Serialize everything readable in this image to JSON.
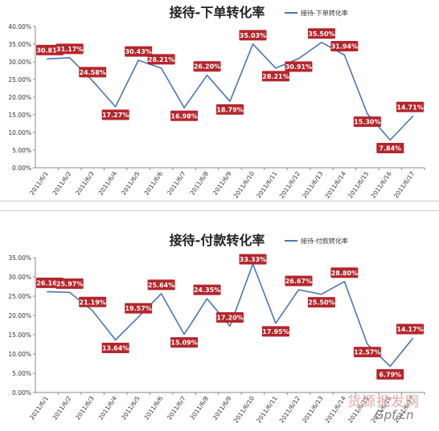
{
  "chart_data": [
    {
      "type": "line",
      "title": "接待-下单转化率",
      "series": [
        {
          "name": "接待-下单转化率",
          "values": [
            30.81,
            31.17,
            24.58,
            17.27,
            30.43,
            28.21,
            16.98,
            26.2,
            18.79,
            35.03,
            28.21,
            30.91,
            35.5,
            31.94,
            15.3,
            7.84,
            14.71
          ]
        }
      ],
      "categories": [
        "2011/6/1",
        "2011/6/2",
        "2011/6/3",
        "2011/6/4",
        "2011/6/5",
        "2011/6/6",
        "2011/6/7",
        "2011/6/8",
        "2011/6/9",
        "2011/6/10",
        "2011/6/11",
        "2011/6/12",
        "2011/6/13",
        "2011/6/14",
        "2011/6/15",
        "2011/6/16",
        "2011/6/17"
      ],
      "data_labels": [
        "30.81%",
        "31.17%",
        "24.58%",
        "17.27%",
        "30.43%",
        "28.21%",
        "16.98%",
        "26.20%",
        "18.79%",
        "35.03%",
        "28.21%",
        "30.91%",
        "35.50%",
        "31.94%",
        "15.30%",
        "7.84%",
        "14.71%"
      ],
      "y_ticks": [
        "0.00%",
        "5.00%",
        "10.00%",
        "15.00%",
        "20.00%",
        "25.00%",
        "30.00%",
        "35.00%",
        "40.00%"
      ],
      "ylim": [
        0,
        40
      ],
      "grid": false,
      "legend": "top-right",
      "line_color": "#4a76b5",
      "label_color": "#b4262c"
    },
    {
      "type": "line",
      "title": "接待-付款转化率",
      "series": [
        {
          "name": "接待-付款转化率",
          "values": [
            26.16,
            25.97,
            21.19,
            13.64,
            19.57,
            25.64,
            15.09,
            24.35,
            17.2,
            33.33,
            17.95,
            26.67,
            25.5,
            28.8,
            12.57,
            6.79,
            14.17
          ]
        }
      ],
      "categories": [
        "2011/6/1",
        "2011/6/2",
        "2011/6/3",
        "2011/6/4",
        "2011/6/5",
        "2011/6/6",
        "2011/6/7",
        "2011/6/8",
        "2011/6/9",
        "2011/6/10",
        "2011/6/11",
        "2011/6/12",
        "2011/6/13",
        "2011/6/14",
        "2011/6/15",
        "2011/6/16",
        "2011/6/17"
      ],
      "data_labels": [
        "26.16%",
        "25.97%",
        "21.19%",
        "13.64%",
        "19.57%",
        "25.64%",
        "15.09%",
        "24.35%",
        "17.20%",
        "33.33%",
        "17.95%",
        "26.67%",
        "25.50%",
        "28.80%",
        "12.57%",
        "6.79%",
        "14.17%"
      ],
      "y_ticks": [
        "0.00%",
        "5.00%",
        "10.00%",
        "15.00%",
        "20.00%",
        "25.00%",
        "30.00%",
        "35.00%"
      ],
      "ylim": [
        0,
        35
      ],
      "grid": false,
      "legend": "top-right",
      "line_color": "#4a76b5",
      "label_color": "#b4262c"
    }
  ],
  "watermark": {
    "chinese": "货源批发网",
    "site": "Gpf.cn"
  }
}
